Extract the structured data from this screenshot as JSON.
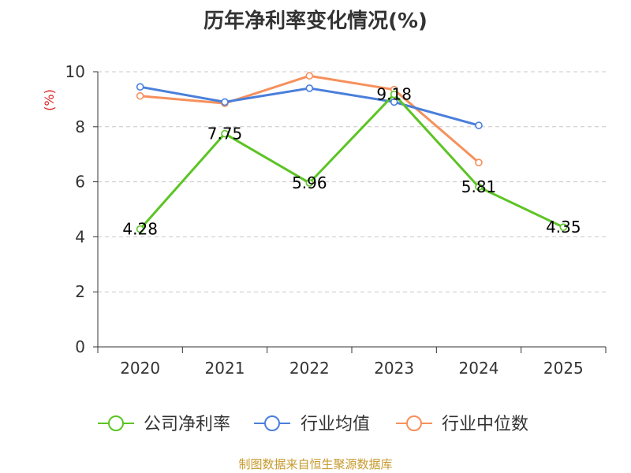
{
  "chart_data": {
    "type": "line",
    "title": "历年净利率变化情况(%)",
    "ylabel": "(%)",
    "categories": [
      "2020",
      "2021",
      "2022",
      "2023",
      "2024",
      "2025"
    ],
    "ylim": [
      0,
      10
    ],
    "yticks": [
      0,
      2,
      4,
      6,
      8,
      10
    ],
    "grid": true,
    "legend_position": "bottom",
    "series": [
      {
        "name": "公司净利率",
        "color": "#5cc424",
        "values": [
          4.28,
          7.75,
          5.96,
          9.18,
          5.81,
          4.35
        ],
        "labels": [
          "4.28",
          "7.75",
          "5.96",
          "9.18",
          "5.81",
          "4.35"
        ]
      },
      {
        "name": "行业均值",
        "color": "#4a7fdb",
        "values": [
          9.45,
          8.9,
          9.4,
          8.9,
          8.05,
          null
        ]
      },
      {
        "name": "行业中位数",
        "color": "#f6905c",
        "values": [
          9.12,
          8.85,
          9.85,
          9.35,
          6.7,
          null
        ]
      }
    ]
  },
  "footer": {
    "source": "制图数据来自恒生聚源数据库"
  }
}
